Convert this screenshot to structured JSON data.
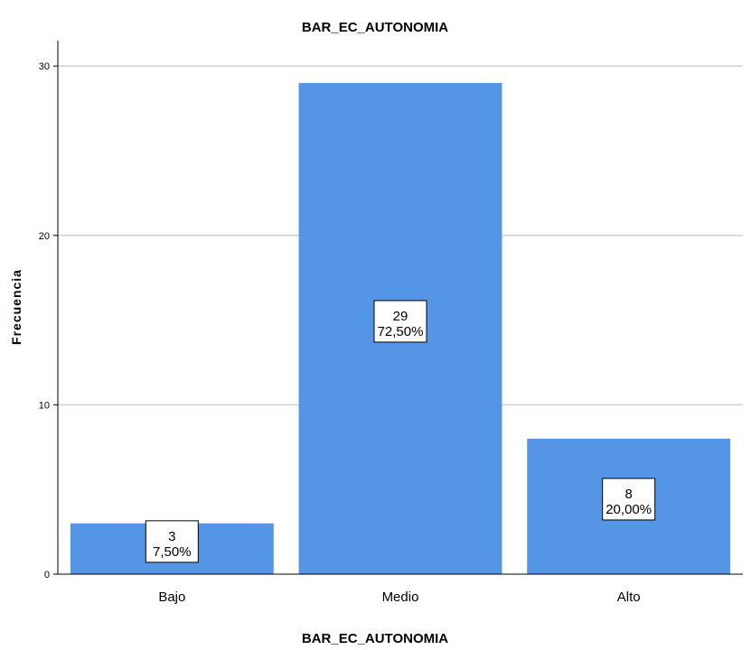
{
  "chart_data": {
    "type": "bar",
    "title": "BAR_EC_AUTONOMIA",
    "xlabel": "BAR_EC_AUTONOMIA",
    "ylabel": "Frecuencia",
    "categories": [
      "Bajo",
      "Medio",
      "Alto"
    ],
    "values": [
      3,
      29,
      8
    ],
    "percent_labels": [
      "7,50%",
      "72,50%",
      "20,00%"
    ],
    "ylim": [
      0,
      31.5
    ],
    "yticks": [
      0,
      10,
      20,
      30
    ],
    "grid": true,
    "bar_color": "#5595e6",
    "grid_color": "#d0d0d0"
  }
}
